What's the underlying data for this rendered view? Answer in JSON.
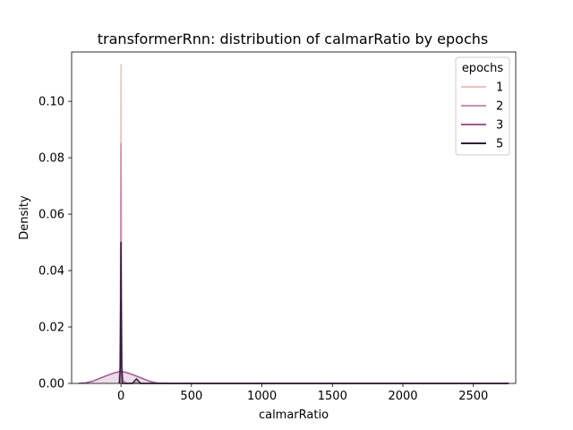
{
  "chart_data": {
    "type": "line",
    "title": "transformerRnn: distribution of calmarRatio by epochs",
    "xlabel": "calmarRatio",
    "ylabel": "Density",
    "xlim": [
      -350,
      2800
    ],
    "ylim": [
      0,
      0.1175
    ],
    "xticks": [
      0,
      500,
      1000,
      1500,
      2000,
      2500
    ],
    "yticks": [
      0.0,
      0.02,
      0.04,
      0.06,
      0.08,
      0.1
    ],
    "ytick_labels": [
      "0.00",
      "0.02",
      "0.04",
      "0.06",
      "0.08",
      "0.10"
    ],
    "grid": false,
    "legend": {
      "title": "epochs",
      "placement": "top-right"
    },
    "series": [
      {
        "name": "1",
        "color": "#ebc3be",
        "x": [
          -10,
          -5,
          -3,
          -2,
          -1,
          0,
          1,
          2,
          3,
          5,
          10,
          20,
          50,
          2750
        ],
        "y": [
          0.0,
          0.004,
          0.025,
          0.06,
          0.095,
          0.113,
          0.095,
          0.06,
          0.025,
          0.004,
          0.0005,
          0.0,
          0.0,
          0.0
        ]
      },
      {
        "name": "2",
        "color": "#d08fad",
        "x": [
          -15,
          -8,
          -4,
          -2,
          0,
          2,
          4,
          8,
          15,
          40,
          2750
        ],
        "y": [
          0.0,
          0.006,
          0.03,
          0.065,
          0.085,
          0.065,
          0.03,
          0.006,
          0.001,
          0.0,
          0.0
        ]
      },
      {
        "name": "3",
        "color": "#a0568f",
        "x": [
          -300,
          -250,
          -200,
          -150,
          -100,
          -50,
          -20,
          0,
          20,
          50,
          100,
          150,
          200,
          250,
          300,
          350,
          2750
        ],
        "y": [
          0.0,
          0.0002,
          0.0008,
          0.0018,
          0.0028,
          0.0037,
          0.0041,
          0.0042,
          0.0041,
          0.0037,
          0.0028,
          0.0018,
          0.0008,
          0.0002,
          0.0001,
          0.0,
          0.0
        ]
      },
      {
        "name": "5",
        "color": "#2d1e3e",
        "x": [
          -10,
          -5,
          -2,
          0,
          2,
          5,
          10,
          80,
          95,
          110,
          125,
          140,
          2750
        ],
        "y": [
          0.0,
          0.006,
          0.03,
          0.05,
          0.03,
          0.006,
          0.0,
          0.0,
          0.0008,
          0.0016,
          0.0008,
          0.0,
          0.0
        ]
      }
    ]
  }
}
